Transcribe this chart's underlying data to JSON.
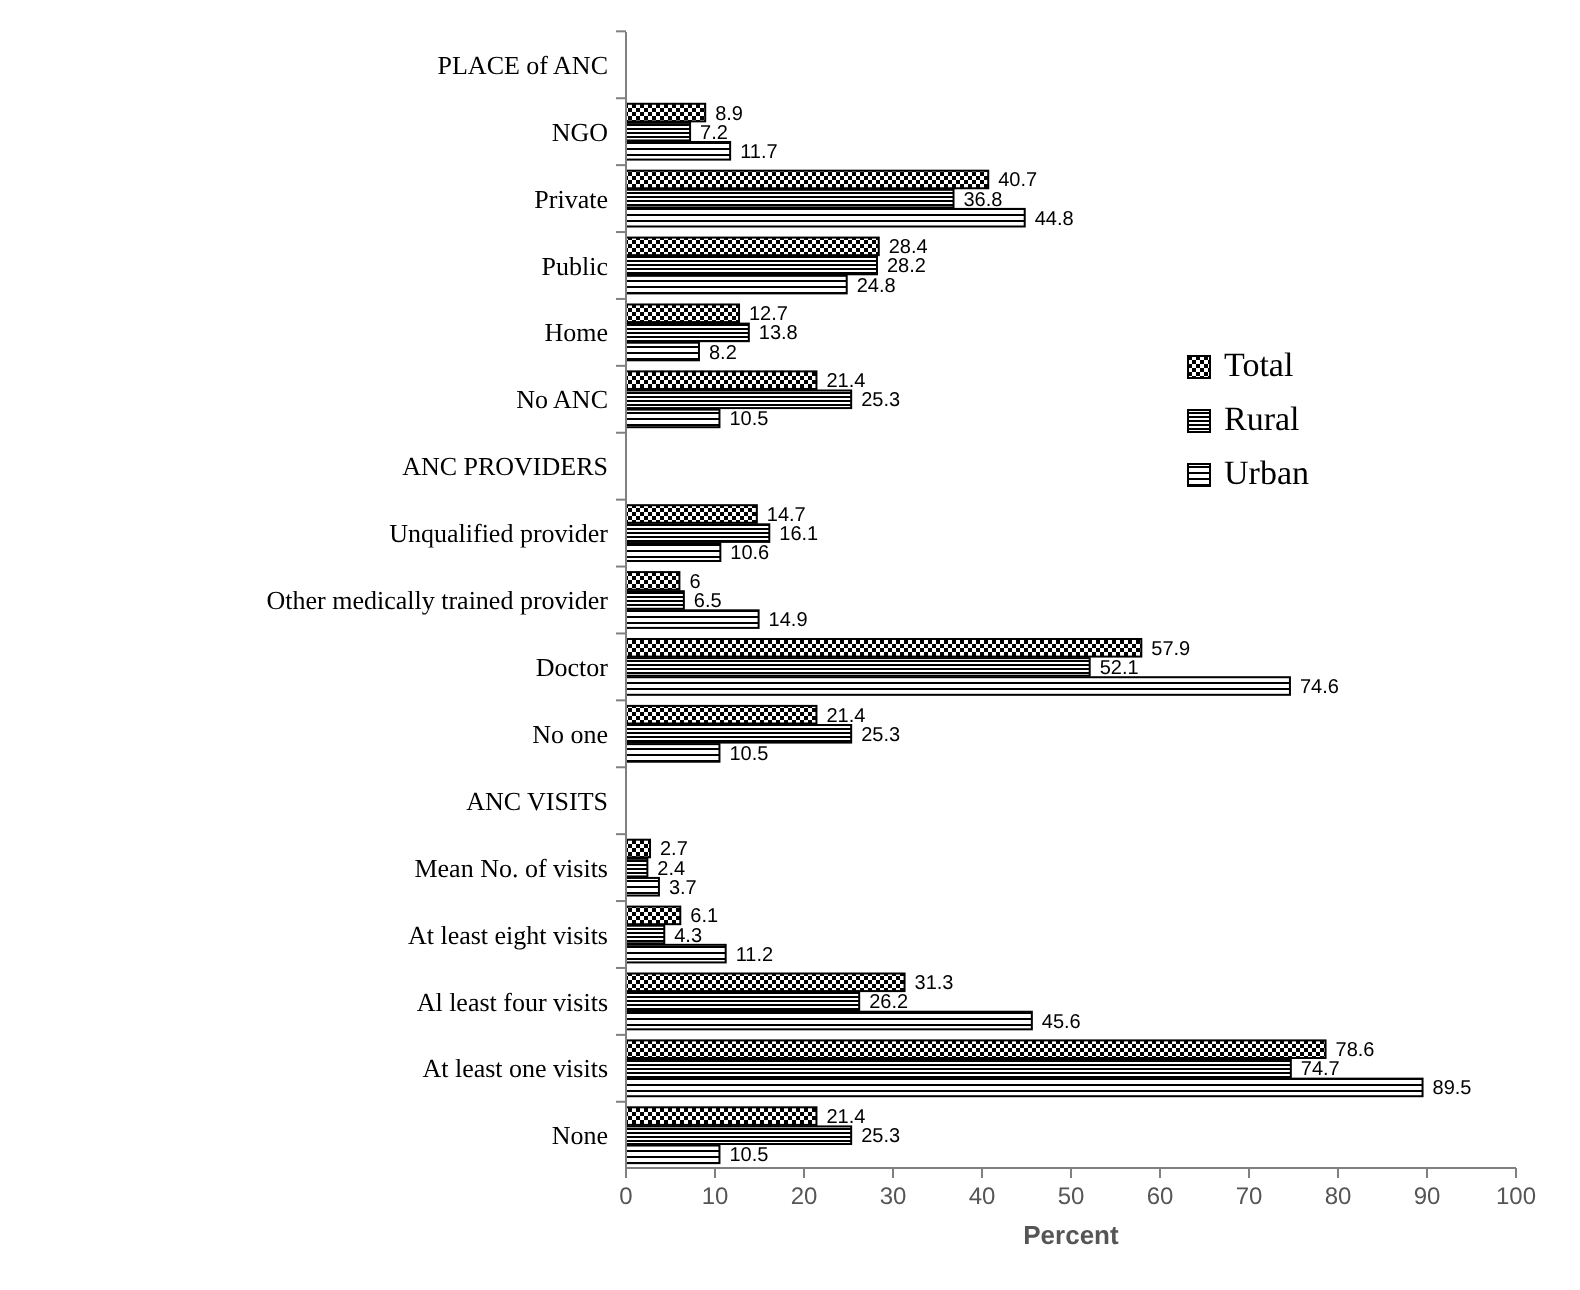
{
  "chart_data": {
    "type": "bar",
    "orientation": "horizontal",
    "xlabel": "Percent",
    "categories": [
      "PLACE of ANC",
      "NGO",
      "Private",
      "Public",
      "Home",
      "No ANC",
      "ANC PROVIDERS",
      "Unqualified provider",
      "Other medically trained provider",
      "Doctor",
      "No one",
      "ANC VISITS",
      "Mean No. of visits",
      "At least eight visits",
      "Al least four visits",
      "At least one visits",
      "None"
    ],
    "series": [
      {
        "name": "Total",
        "color": "#000000",
        "values": [
          null,
          8.9,
          40.7,
          28.4,
          12.7,
          21.4,
          null,
          14.7,
          6,
          57.9,
          21.4,
          null,
          2.7,
          6.1,
          31.3,
          78.6,
          21.4
        ]
      },
      {
        "name": "Rural",
        "color": "#000000",
        "values": [
          null,
          7.2,
          36.8,
          28.2,
          13.8,
          25.3,
          null,
          16.1,
          6.5,
          52.1,
          25.3,
          null,
          2.4,
          4.3,
          26.2,
          74.7,
          25.3
        ]
      },
      {
        "name": "Urban",
        "color": "#000000",
        "values": [
          null,
          11.7,
          44.8,
          24.8,
          8.2,
          10.5,
          null,
          10.6,
          14.9,
          74.6,
          10.5,
          null,
          3.7,
          11.2,
          45.6,
          89.5,
          10.5
        ]
      }
    ],
    "xlim": [
      0,
      100
    ],
    "xticks": [
      0,
      10,
      20,
      30,
      40,
      50,
      60,
      70,
      80,
      90,
      100
    ],
    "grid": false,
    "legend": "right",
    "data_labels": true
  }
}
